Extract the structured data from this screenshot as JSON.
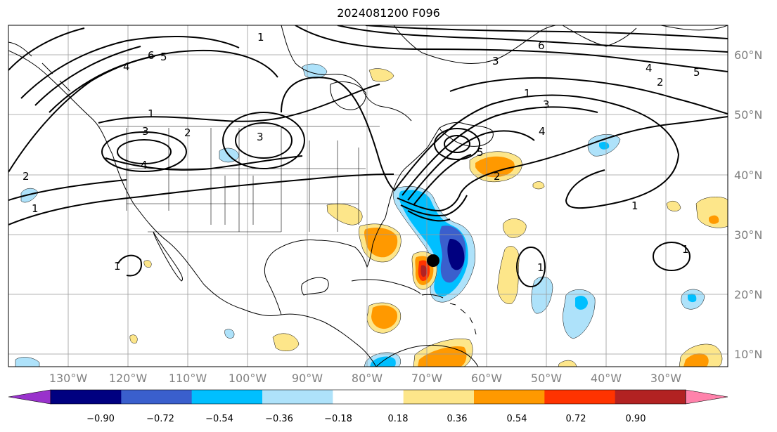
{
  "title": "2024081200 F096",
  "latitude_labels": [
    "60°N",
    "50°N",
    "40°N",
    "30°N",
    "20°N",
    "10°N"
  ],
  "longitude_labels": [
    "130°W",
    "120°W",
    "110°W",
    "100°W",
    "90°W",
    "80°W",
    "70°W",
    "60°W",
    "50°W",
    "40°W",
    "30°W"
  ],
  "colorbar": {
    "ticks": [
      "−0.90",
      "−0.72",
      "−0.54",
      "−0.36",
      "−0.18",
      "0.18",
      "0.36",
      "0.54",
      "0.72",
      "0.90"
    ],
    "colors": [
      "#9932cc",
      "#000080",
      "#3a5fcd",
      "#00bfff",
      "#aee2fa",
      "#ffffff",
      "#fde68a",
      "#ff9900",
      "#ff3300",
      "#b22222",
      "#ff82ab"
    ]
  },
  "contour_labels": [
    "1",
    "2",
    "3",
    "4",
    "5",
    "6"
  ],
  "marker": {
    "label": "storm-center",
    "color": "#000000"
  }
}
